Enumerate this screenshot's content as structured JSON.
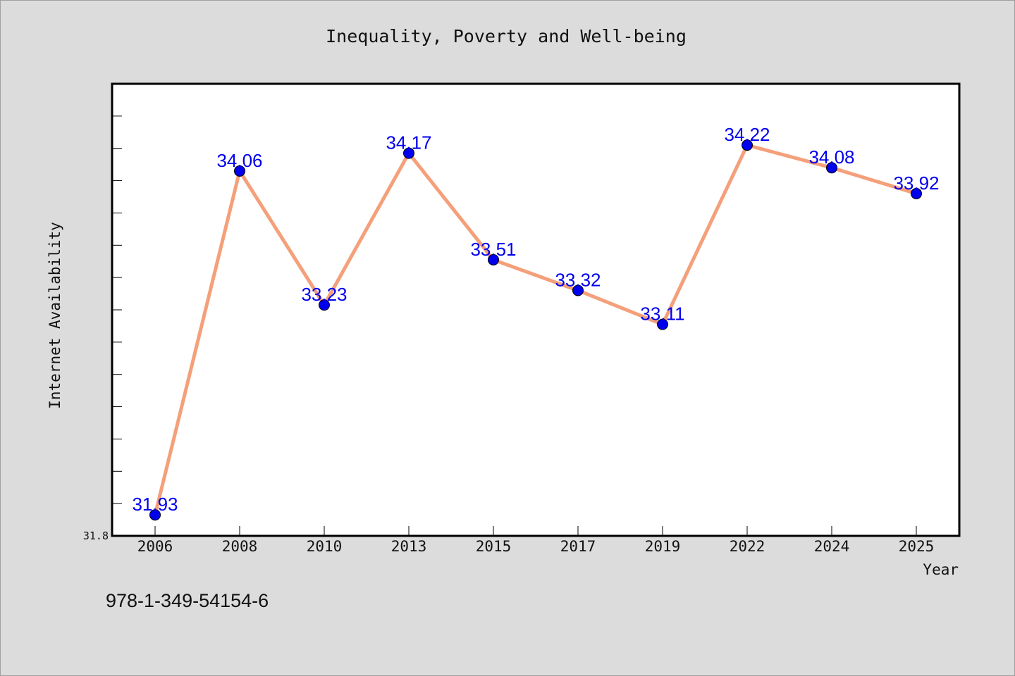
{
  "chart_data": {
    "type": "line",
    "title": "Inequality, Poverty and Well-being",
    "xlabel": "Year",
    "ylabel": "Internet Availability",
    "categories": [
      "2006",
      "2008",
      "2010",
      "2013",
      "2015",
      "2017",
      "2019",
      "2022",
      "2024",
      "2025"
    ],
    "series": [
      {
        "values": [
          31.93,
          34.06,
          33.23,
          34.17,
          33.51,
          33.32,
          33.11,
          34.22,
          34.08,
          33.92
        ],
        "labels": [
          "31.93",
          "34.06",
          "33.23",
          "34.17",
          "33.51",
          "33.32",
          "33.11",
          "34.22",
          "34.08",
          "33.92"
        ]
      }
    ],
    "ylim": [
      31.8,
      34.6
    ],
    "y_tick_labels": [
      "31.8"
    ],
    "grid": false,
    "line_color": "#f4a07a",
    "marker_color": "#0000ee"
  },
  "footer": {
    "isbn": "978-1-349-54154-6"
  }
}
